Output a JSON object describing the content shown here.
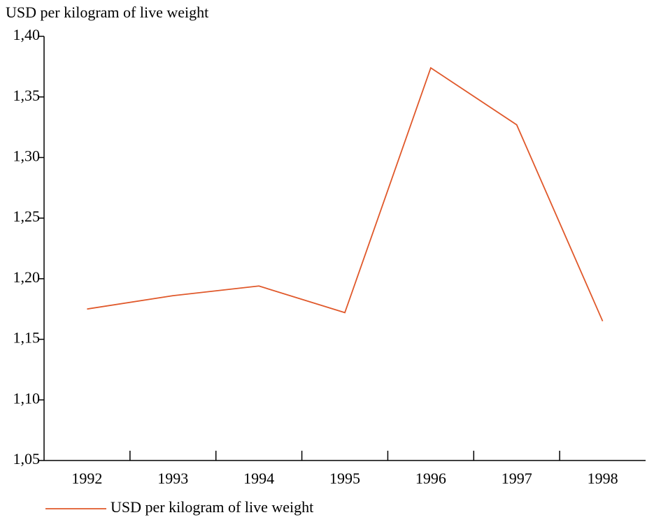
{
  "chart_data": {
    "type": "line",
    "y_label": "USD per kilogram of live weight",
    "categories": [
      "1992",
      "1993",
      "1994",
      "1995",
      "1996",
      "1997",
      "1998"
    ],
    "series": [
      {
        "name": "USD per kilogram of live weight",
        "color": "#e0582a",
        "values": [
          1.175,
          1.186,
          1.194,
          1.172,
          1.374,
          1.327,
          1.165
        ]
      }
    ],
    "ylim": [
      1.05,
      1.4
    ],
    "yticks": [
      {
        "value": 1.05,
        "label": "1,05"
      },
      {
        "value": 1.1,
        "label": "1,10"
      },
      {
        "value": 1.15,
        "label": "1,15"
      },
      {
        "value": 1.2,
        "label": "1,20"
      },
      {
        "value": 1.25,
        "label": "1,25"
      },
      {
        "value": 1.3,
        "label": "1,30"
      },
      {
        "value": 1.35,
        "label": "1,35"
      },
      {
        "value": 1.4,
        "label": "1,40"
      }
    ],
    "grid": false,
    "legend": "bottom-left"
  }
}
